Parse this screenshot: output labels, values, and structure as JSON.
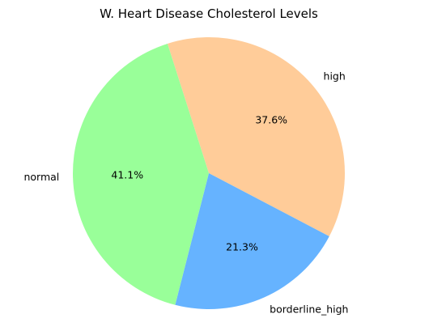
{
  "chart_data": {
    "type": "pie",
    "title": "W. Heart Disease Cholesterol Levels",
    "slices": [
      {
        "label": "high",
        "value": 37.6,
        "pct_label": "37.6%",
        "color": "#ffcc99"
      },
      {
        "label": "borderline_high",
        "value": 21.3,
        "pct_label": "21.3%",
        "color": "#66b3ff"
      },
      {
        "label": "normal",
        "value": 41.1,
        "pct_label": "41.1%",
        "color": "#99ff99"
      }
    ]
  }
}
